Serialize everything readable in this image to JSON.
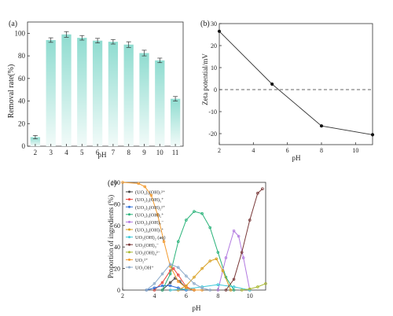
{
  "colors": {
    "bar_top": "#8fdcd0",
    "bar_bottom": "#f2fbf9",
    "axis": "#333333",
    "line_b": "#333333",
    "zero_line_b": "#333333"
  },
  "chart_data": [
    {
      "panel": "(a)",
      "type": "bar",
      "categories": [
        "2",
        "3",
        "4",
        "5",
        "6",
        "7",
        "8",
        "9",
        "10",
        "11"
      ],
      "values": [
        8,
        94,
        99,
        96,
        93.5,
        92.5,
        90,
        82.5,
        76,
        42
      ],
      "errors": [
        1.5,
        2,
        2.5,
        2,
        2,
        2,
        2.5,
        2.5,
        2,
        2
      ],
      "xlabel": "pH",
      "ylabel": "Removal rate(%)",
      "ylim": [
        0,
        110
      ],
      "yticks": [
        0,
        20,
        40,
        60,
        80,
        100
      ],
      "legend": "none",
      "grid": false
    },
    {
      "panel": "(b)",
      "type": "line",
      "x": [
        2,
        5.1,
        8,
        11
      ],
      "y": [
        26.5,
        2.5,
        -16.5,
        -20.5
      ],
      "xlabel": "pH",
      "ylabel": "Zeta potential/mV",
      "xlim": [
        2,
        11
      ],
      "ylim": [
        -25,
        30
      ],
      "xticks": [
        2,
        4,
        6,
        8,
        10
      ],
      "yticks": [
        -20,
        -10,
        0,
        10,
        20,
        30
      ],
      "reference_line": 0,
      "legend": "none",
      "grid": false
    },
    {
      "panel": "(c)",
      "type": "line",
      "xlabel": "pH",
      "ylabel": "Proportion of ingredients (%)",
      "xlim": [
        2,
        11
      ],
      "ylim": [
        0,
        100
      ],
      "xticks": [
        2,
        4,
        6,
        8,
        10
      ],
      "yticks": [
        0,
        20,
        40,
        60,
        80,
        100
      ],
      "legend": "left",
      "grid": false,
      "series": [
        {
          "name": "(UO₂)₃(OH)₇²⁺",
          "color": "#444444",
          "x": [
            4.5,
            5.0,
            5.3,
            5.6,
            6.0,
            6.5
          ],
          "y": [
            0,
            7,
            11,
            8,
            2,
            0
          ]
        },
        {
          "name": "(UO₂)₃(OH)₅⁺",
          "color": "#e8453c",
          "x": [
            4.0,
            4.5,
            5.0,
            5.2,
            5.5,
            6.0,
            6.5
          ],
          "y": [
            0,
            7,
            18,
            20,
            14,
            3,
            0
          ]
        },
        {
          "name": "(UO₂)₂(OH)₂²⁺",
          "color": "#2e6fd8",
          "x": [
            3.5,
            4.0,
            4.5,
            5.0,
            5.5,
            6.0
          ],
          "y": [
            0,
            2,
            4,
            4,
            2,
            0
          ]
        },
        {
          "name": "(UO₂)₃(OH)₅⁺",
          "color": "#2ab37a",
          "x": [
            4.5,
            5.0,
            5.5,
            6.0,
            6.5,
            7.0,
            7.5,
            8.0,
            8.5,
            9.0
          ],
          "y": [
            0,
            15,
            45,
            65,
            73,
            71,
            58,
            35,
            12,
            0
          ]
        },
        {
          "name": "(UO₂)₃(OH)₇⁻",
          "color": "#b27ae0",
          "x": [
            8.0,
            8.5,
            9.0,
            9.3,
            9.6,
            10.0
          ],
          "y": [
            0,
            30,
            55,
            50,
            30,
            0
          ]
        },
        {
          "name": "(UO₂)₄(OH)₇⁺",
          "color": "#d8a020",
          "x": [
            5.5,
            6.0,
            6.5,
            7.0,
            7.5,
            7.9,
            8.3,
            8.8
          ],
          "y": [
            0,
            4,
            12,
            20,
            27,
            29,
            18,
            0
          ]
        },
        {
          "name": "UO₂(OH)₂ (aq)",
          "color": "#3cc8d8",
          "x": [
            5.0,
            6.0,
            7.0,
            8.0,
            9.0,
            10.0
          ],
          "y": [
            0,
            1,
            3,
            5,
            3,
            0
          ]
        },
        {
          "name": "UO₂(OH)₃⁻",
          "color": "#7a3a3a",
          "x": [
            8.5,
            9.0,
            9.5,
            10.0,
            10.5,
            10.8
          ],
          "y": [
            0,
            10,
            35,
            65,
            90,
            94
          ]
        },
        {
          "name": "UO₂(OH)₄²⁻",
          "color": "#a8b830",
          "x": [
            9.5,
            10.0,
            10.5,
            11.0
          ],
          "y": [
            0,
            1,
            3,
            6
          ]
        },
        {
          "name": "UO₂²⁺",
          "color": "#f29a2e",
          "x": [
            2.0,
            3.0,
            3.4,
            3.8,
            4.2,
            4.6,
            5.0,
            5.5,
            6.0,
            6.5,
            7.0
          ],
          "y": [
            100,
            99,
            96,
            88,
            70,
            45,
            22,
            8,
            2,
            0,
            0
          ]
        },
        {
          "name": "UO₂OH⁺",
          "color": "#8aa8c8",
          "x": [
            3.5,
            4.0,
            4.5,
            5.0,
            5.5,
            6.0,
            6.5,
            7.0,
            7.5
          ],
          "y": [
            0,
            6,
            15,
            24,
            21,
            13,
            6,
            2,
            0
          ]
        }
      ]
    }
  ]
}
